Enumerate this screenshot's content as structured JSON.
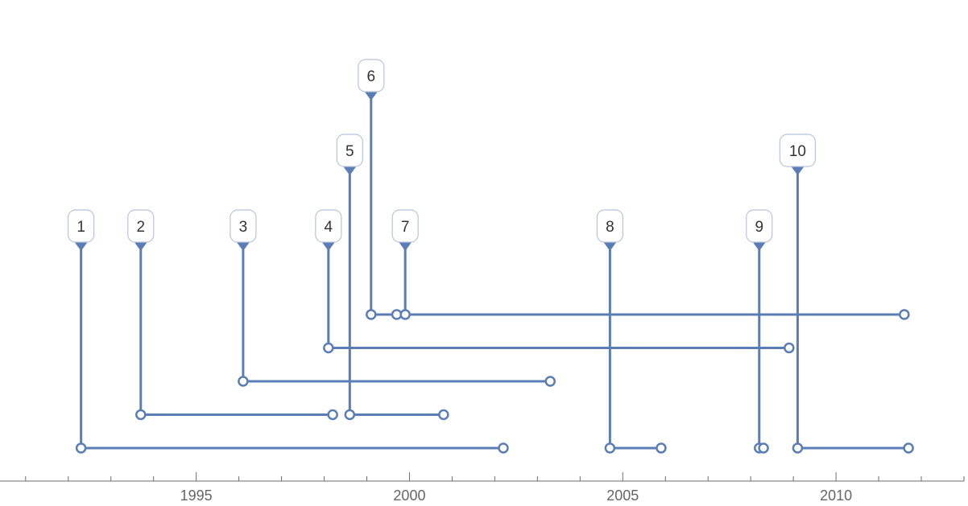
{
  "chart_data": {
    "type": "timeline",
    "title": "",
    "xlabel": "",
    "ylabel": "",
    "xlim": [
      1990.4,
      2013.0
    ],
    "x_ticks_major": [
      1995,
      2000,
      2005,
      2010
    ],
    "x_tick_labels": [
      "1995",
      "2000",
      "2005",
      "2010"
    ],
    "x_ticks_minor_every": 1,
    "grid": false,
    "colors": {
      "intervals": "#5b7db5",
      "axis": "#6e6e6e",
      "label_text": "#333333",
      "label_border": "#b8c4dc",
      "tick_label": "#666666"
    },
    "events": [
      {
        "label": "1",
        "start": 1992.3,
        "end": 2002.2,
        "row": 0,
        "label_level": 0
      },
      {
        "label": "2",
        "start": 1993.7,
        "end": 1998.2,
        "row": 1,
        "label_level": 0
      },
      {
        "label": "3",
        "start": 1996.1,
        "end": 2003.3,
        "row": 2,
        "label_level": 0
      },
      {
        "label": "4",
        "start": 1998.1,
        "end": 2008.9,
        "row": 3,
        "label_level": 0
      },
      {
        "label": "5",
        "start": 1998.6,
        "end": 2000.8,
        "row": 1,
        "label_level": 1
      },
      {
        "label": "6",
        "start": 1999.1,
        "end": 1999.7,
        "row": 4,
        "label_level": 2
      },
      {
        "label": "7",
        "start": 1999.9,
        "end": 2011.6,
        "row": 4,
        "label_level": 0
      },
      {
        "label": "8",
        "start": 2004.7,
        "end": 2005.9,
        "row": 0,
        "label_level": 0
      },
      {
        "label": "9",
        "start": 2008.2,
        "end": 2008.3,
        "row": 0,
        "label_level": 0
      },
      {
        "label": "10",
        "start": 2009.1,
        "end": 2011.7,
        "row": 0,
        "label_level": 1
      }
    ]
  }
}
